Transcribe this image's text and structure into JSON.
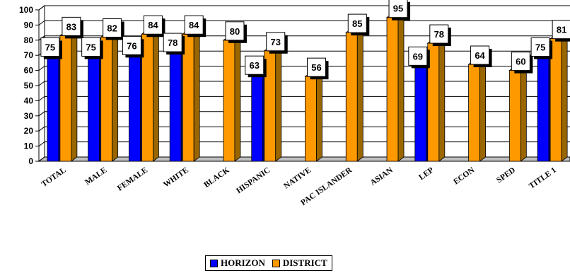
{
  "chart_data": {
    "type": "bar",
    "categories": [
      "TOTAL",
      "MALE",
      "FEMALE",
      "WHITE",
      "BLACK",
      "HISPANIC",
      "NATIVE",
      "PAC ISLANDER",
      "ASIAN",
      "LEP",
      "ECON",
      "SPED",
      "TITLE 1"
    ],
    "series": [
      {
        "name": "HORIZON",
        "values": [
          75,
          75,
          76,
          78,
          null,
          63,
          null,
          null,
          null,
          69,
          null,
          null,
          75
        ]
      },
      {
        "name": "DISTRICT",
        "values": [
          83,
          82,
          84,
          84,
          80,
          73,
          56,
          85,
          95,
          78,
          64,
          60,
          81
        ]
      }
    ],
    "yticks": [
      "0",
      "10",
      "20",
      "30",
      "40",
      "50",
      "60",
      "70",
      "80",
      "90",
      "100"
    ],
    "ylim": [
      0,
      100
    ],
    "grid": true,
    "legend_position": "bottom",
    "colors": {
      "HORIZON": "#0000ff",
      "DISTRICT": "#ff9900",
      "horizon_side": "#000080",
      "district_side": "#996600"
    }
  }
}
